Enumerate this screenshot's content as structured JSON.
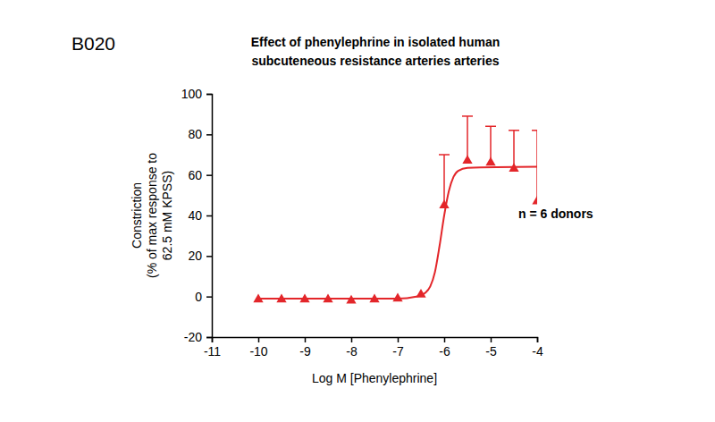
{
  "chart_data": {
    "type": "scatter",
    "title": [
      "Effect of phenylephrine in isolated human",
      "subcuteneous resistance arteries arteries"
    ],
    "x_label": "Log M [Phenylephrine]",
    "y_label": [
      "Constriction",
      "(% of max response to",
      "62.5 mM KPSS)"
    ],
    "annotations": [
      "B020",
      "n = 6 donors"
    ],
    "xlim": [
      -11,
      -4
    ],
    "xticks": [
      -11,
      -10,
      -9,
      -8,
      -7,
      -6,
      -5,
      -4
    ],
    "ylim": [
      -20,
      100
    ],
    "yticks": [
      -20,
      0,
      20,
      40,
      60,
      80,
      100
    ],
    "grid": false,
    "color": "#e3262a",
    "series": [
      {
        "type": "scatter",
        "marker": "triangle",
        "x": [
          -10,
          -9.5,
          -9,
          -8.5,
          -8,
          -7.5,
          -7,
          -6.5,
          -6,
          -5.5,
          -5,
          -4.5,
          -4
        ],
        "values": [
          -1.5,
          -1.5,
          -1.5,
          -1.5,
          -2,
          -1.5,
          -1,
          1,
          45,
          67,
          66,
          63,
          47
        ],
        "errors": [
          null,
          null,
          null,
          null,
          null,
          null,
          null,
          null,
          25,
          22,
          18,
          19,
          35
        ]
      },
      {
        "type": "line",
        "line_style": "solid",
        "x": [
          -10,
          -7,
          -6.6,
          -6.4,
          -6.3,
          -6.2,
          -6.1,
          -6.0,
          -5.9,
          -5.8,
          -5.7,
          -5.5,
          -4
        ],
        "values": [
          -1,
          -1,
          0,
          2,
          5,
          12,
          25,
          40,
          52,
          59,
          62,
          63.5,
          64
        ]
      }
    ]
  }
}
